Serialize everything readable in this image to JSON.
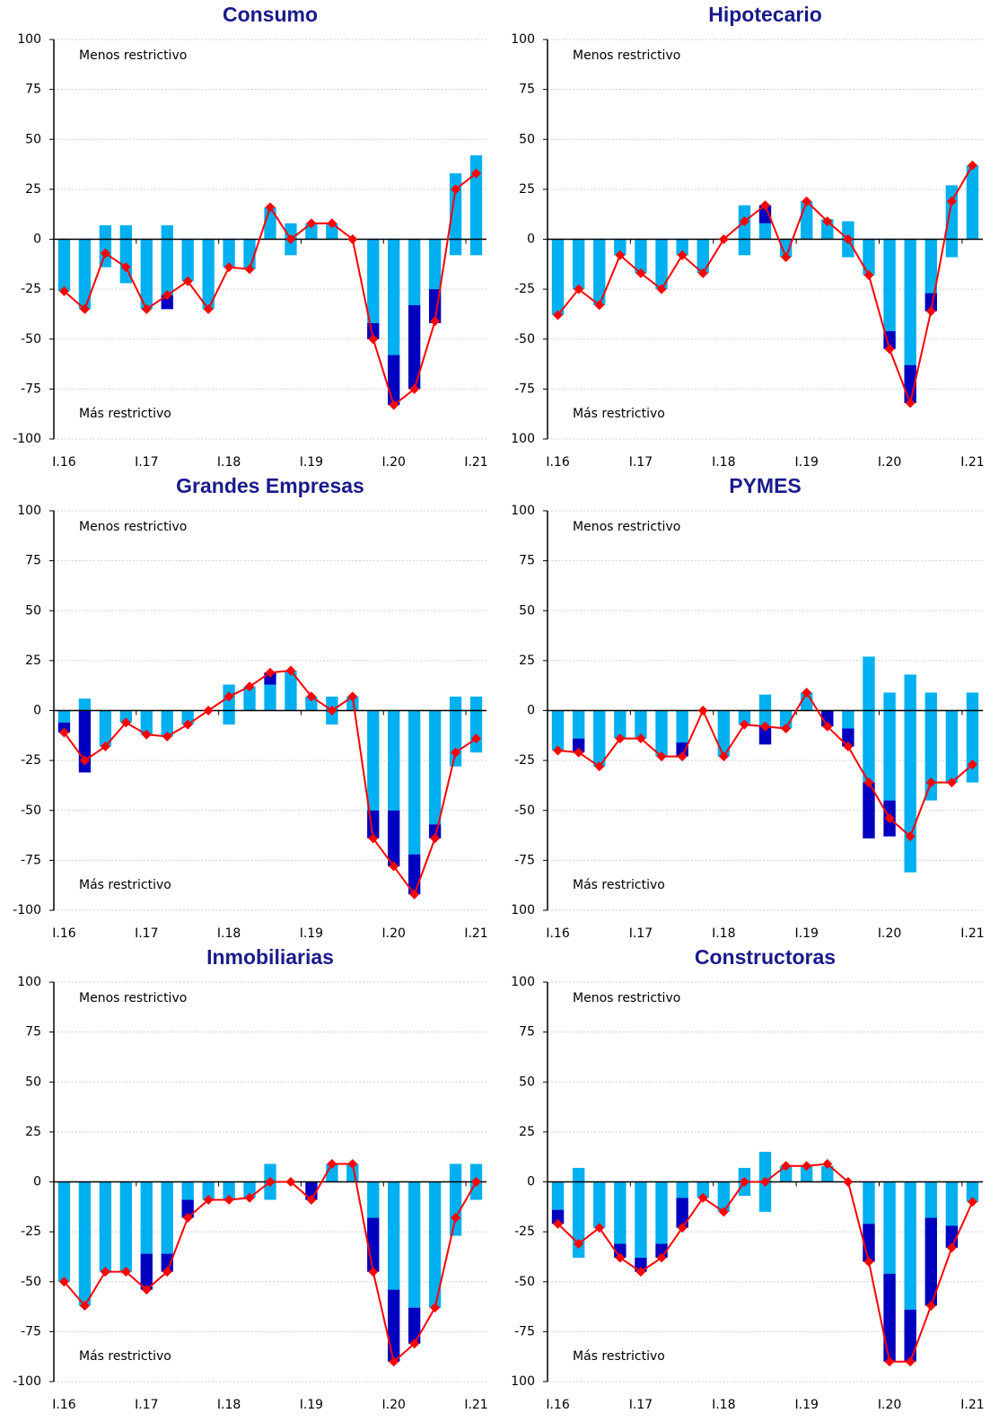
{
  "chart_data": [
    {
      "type": "bar",
      "title": "Consumo",
      "grid": true,
      "ylim": [
        -100,
        100
      ],
      "yticks": [
        100,
        75,
        50,
        25,
        0,
        -25,
        -50,
        -75,
        -100
      ],
      "annotations": [
        "Menos restrictivo",
        "Más restrictivo"
      ],
      "categories": [
        "I.16",
        null,
        null,
        null,
        "I.17",
        null,
        null,
        null,
        "I.18",
        null,
        null,
        null,
        "I.19",
        null,
        null,
        null,
        "I.20",
        null,
        null,
        null,
        "I.21"
      ],
      "series": [
        {
          "type": "bar",
          "color": "#00b0f0",
          "values": [
            0,
            0,
            7,
            7,
            0,
            7,
            0,
            0,
            0,
            0,
            16,
            8,
            8,
            8,
            0,
            0,
            0,
            0,
            0,
            33,
            42
          ]
        },
        {
          "type": "bar",
          "color": "#00b0f0",
          "values": [
            -26,
            -35,
            -14,
            -22,
            -35,
            -28,
            -21,
            -35,
            -14,
            -15,
            0,
            -8,
            0,
            0,
            0,
            -42,
            -58,
            -33,
            -25,
            -8,
            -8
          ]
        },
        {
          "type": "bar",
          "color": "#0000c0",
          "values": [
            0,
            0,
            0,
            0,
            0,
            -7,
            0,
            0,
            0,
            0,
            0,
            0,
            0,
            0,
            0,
            -8,
            -25,
            -42,
            -17,
            0,
            0
          ]
        },
        {
          "type": "line",
          "color": "#ff0000",
          "values": [
            -26,
            -35,
            -7,
            -14,
            -35,
            -28,
            -21,
            -35,
            -14,
            -15,
            16,
            0,
            8,
            8,
            0,
            -50,
            -83,
            -75,
            -41,
            25,
            33
          ]
        }
      ]
    },
    {
      "type": "bar",
      "title": "Hipotecario",
      "grid": true,
      "ylim": [
        -100,
        100
      ],
      "yticks": [
        100,
        75,
        50,
        25,
        0,
        -25,
        -50,
        -75,
        {
          "value": -100,
          "label": "100"
        }
      ],
      "annotations": [
        "Menos restrictivo",
        "Más restrictivo"
      ],
      "categories": [
        "I.16",
        null,
        null,
        null,
        "I.17",
        null,
        null,
        null,
        "I.18",
        null,
        null,
        null,
        "I.19",
        null,
        null,
        null,
        "I.20",
        null,
        null,
        null,
        "I.21"
      ],
      "series": [
        {
          "type": "bar",
          "color": "#00b0f0",
          "values": [
            0,
            0,
            0,
            0,
            0,
            0,
            0,
            0,
            0,
            17,
            8,
            0,
            19,
            10,
            9,
            0,
            0,
            0,
            0,
            27,
            37
          ]
        },
        {
          "type": "bar",
          "color": "#00b0f0",
          "values": [
            -38,
            -25,
            -33,
            -8,
            -17,
            -25,
            -8,
            -17,
            0,
            -8,
            0,
            -9,
            0,
            0,
            -9,
            -18,
            -46,
            -63,
            -27,
            -9,
            0
          ]
        },
        {
          "type": "bar",
          "color": "#0000c0",
          "values": [
            0,
            0,
            0,
            0,
            0,
            0,
            0,
            0,
            0,
            0,
            9,
            0,
            0,
            0,
            0,
            0,
            -9,
            -19,
            -9,
            0,
            0
          ]
        },
        {
          "type": "line",
          "color": "#ff0000",
          "values": [
            -38,
            -25,
            -33,
            -8,
            -17,
            -25,
            -8,
            -17,
            0,
            9,
            17,
            -9,
            19,
            9,
            0,
            -18,
            -55,
            -82,
            -36,
            19,
            37
          ]
        }
      ]
    },
    {
      "type": "bar",
      "title": "Grandes Empresas",
      "grid": true,
      "ylim": [
        -100,
        100
      ],
      "yticks": [
        100,
        75,
        50,
        25,
        0,
        -25,
        -50,
        -75,
        -100
      ],
      "annotations": [
        "Menos restrictivo",
        "Más restrictivo"
      ],
      "categories": [
        "I.16",
        null,
        null,
        null,
        "I.17",
        null,
        null,
        null,
        "I.18",
        null,
        null,
        null,
        "I.19",
        null,
        null,
        null,
        "I.20",
        null,
        null,
        null,
        "I.21"
      ],
      "series": [
        {
          "type": "bar",
          "color": "#00b0f0",
          "values": [
            0,
            6,
            0,
            0,
            0,
            0,
            0,
            0,
            13,
            12,
            13,
            20,
            7,
            7,
            7,
            0,
            0,
            0,
            0,
            7,
            7
          ]
        },
        {
          "type": "bar",
          "color": "#00b0f0",
          "values": [
            -6,
            0,
            -18,
            -6,
            -12,
            -13,
            -7,
            0,
            -7,
            0,
            0,
            0,
            0,
            -7,
            0,
            -50,
            -50,
            -72,
            -57,
            -28,
            -21
          ]
        },
        {
          "type": "bar",
          "color": "#0000c0",
          "values": [
            -5,
            -31,
            0,
            0,
            0,
            0,
            0,
            0,
            0,
            0,
            6,
            0,
            0,
            0,
            0,
            -14,
            -28,
            -20,
            -7,
            0,
            0
          ]
        },
        {
          "type": "line",
          "color": "#ff0000",
          "values": [
            -11,
            -25,
            -18,
            -6,
            -12,
            -13,
            -7,
            0,
            7,
            12,
            19,
            20,
            7,
            0,
            7,
            -64,
            -78,
            -92,
            -64,
            -21,
            -14
          ]
        }
      ]
    },
    {
      "type": "bar",
      "title": "PYMES",
      "grid": true,
      "ylim": [
        -100,
        100
      ],
      "yticks": [
        100,
        75,
        50,
        25,
        0,
        -25,
        -50,
        -75,
        {
          "value": -100,
          "label": "100"
        }
      ],
      "annotations": [
        "Menos restrictivo",
        "Más restrictivo"
      ],
      "categories": [
        "I.16",
        null,
        null,
        null,
        "I.17",
        null,
        null,
        null,
        "I.18",
        null,
        null,
        null,
        "I.19",
        null,
        null,
        null,
        "I.20",
        null,
        null,
        null,
        "I.21"
      ],
      "series": [
        {
          "type": "bar",
          "color": "#00b0f0",
          "values": [
            0,
            0,
            0,
            0,
            0,
            0,
            0,
            0,
            0,
            0,
            8,
            0,
            9,
            0,
            0,
            27,
            9,
            18,
            9,
            0,
            9
          ]
        },
        {
          "type": "bar",
          "color": "#00b0f0",
          "values": [
            -20,
            -14,
            -28,
            -14,
            -14,
            -23,
            -16,
            0,
            -23,
            -7,
            -8,
            -9,
            0,
            0,
            -9,
            -36,
            -45,
            -81,
            -45,
            -36,
            -36
          ]
        },
        {
          "type": "bar",
          "color": "#0000c0",
          "values": [
            0,
            -7,
            0,
            0,
            0,
            0,
            -7,
            0,
            0,
            0,
            -9,
            0,
            0,
            -8,
            -9,
            -28,
            -18,
            0,
            0,
            0,
            0
          ]
        },
        {
          "type": "line",
          "color": "#ff0000",
          "values": [
            -20,
            -21,
            -28,
            -14,
            -14,
            -23,
            -23,
            0,
            -23,
            -7,
            -8,
            -9,
            9,
            -8,
            -18,
            -36,
            -54,
            -63,
            -36,
            -36,
            -27
          ]
        }
      ]
    },
    {
      "type": "bar",
      "title": "Inmobiliarias",
      "grid": true,
      "ylim": [
        -100,
        100
      ],
      "yticks": [
        100,
        75,
        50,
        25,
        0,
        -25,
        -50,
        -75,
        -100
      ],
      "annotations": [
        "Menos restrictivo",
        "Más restrictivo"
      ],
      "categories": [
        "I.16",
        null,
        null,
        null,
        "I.17",
        null,
        null,
        null,
        "I.18",
        null,
        null,
        null,
        "I.19",
        null,
        null,
        null,
        "I.20",
        null,
        null,
        null,
        "I.21"
      ],
      "series": [
        {
          "type": "bar",
          "color": "#00b0f0",
          "values": [
            0,
            0,
            0,
            0,
            0,
            0,
            0,
            0,
            0,
            0,
            9,
            0,
            0,
            9,
            9,
            0,
            0,
            0,
            0,
            9,
            9
          ]
        },
        {
          "type": "bar",
          "color": "#00b0f0",
          "values": [
            -50,
            -62,
            -45,
            -45,
            -36,
            -36,
            -9,
            -9,
            -9,
            -8,
            -9,
            0,
            0,
            0,
            0,
            -18,
            -54,
            -63,
            -63,
            -27,
            -9
          ]
        },
        {
          "type": "bar",
          "color": "#0000c0",
          "values": [
            0,
            0,
            0,
            0,
            -18,
            -9,
            -9,
            0,
            0,
            0,
            0,
            0,
            -9,
            0,
            0,
            -27,
            -36,
            -18,
            0,
            0,
            0
          ]
        },
        {
          "type": "line",
          "color": "#ff0000",
          "values": [
            -50,
            -62,
            -45,
            -45,
            -54,
            -45,
            -18,
            -9,
            -9,
            -8,
            0,
            0,
            -9,
            9,
            9,
            -45,
            -90,
            -81,
            -63,
            -18,
            0
          ]
        }
      ]
    },
    {
      "type": "bar",
      "title": "Constructoras",
      "grid": true,
      "ylim": [
        -100,
        100
      ],
      "yticks": [
        100,
        75,
        50,
        25,
        0,
        -25,
        -50,
        -75,
        {
          "value": -100,
          "label": "100"
        }
      ],
      "annotations": [
        "Menos restrictivo",
        "Más restrictivo"
      ],
      "categories": [
        "I.16",
        null,
        null,
        null,
        "I.17",
        null,
        null,
        null,
        "I.18",
        null,
        null,
        null,
        "I.19",
        null,
        null,
        null,
        "I.20",
        null,
        null,
        null,
        "I.21"
      ],
      "series": [
        {
          "type": "bar",
          "color": "#00b0f0",
          "values": [
            0,
            7,
            0,
            0,
            0,
            0,
            0,
            0,
            0,
            7,
            15,
            8,
            8,
            8,
            0,
            0,
            0,
            0,
            0,
            0,
            0
          ]
        },
        {
          "type": "bar",
          "color": "#00b0f0",
          "values": [
            -14,
            -38,
            -23,
            -31,
            -38,
            -31,
            -8,
            -8,
            -15,
            -7,
            -15,
            0,
            0,
            0,
            0,
            -21,
            -46,
            -64,
            -18,
            -22,
            -10
          ]
        },
        {
          "type": "bar",
          "color": "#0000c0",
          "values": [
            -7,
            0,
            0,
            -7,
            -7,
            -7,
            -15,
            0,
            0,
            0,
            0,
            0,
            0,
            0,
            0,
            -19,
            -44,
            -26,
            -44,
            -11,
            0
          ]
        },
        {
          "type": "line",
          "color": "#ff0000",
          "values": [
            -21,
            -31,
            -23,
            -38,
            -45,
            -38,
            -23,
            -8,
            -15,
            0,
            0,
            8,
            8,
            9,
            0,
            -40,
            -90,
            -90,
            -62,
            -33,
            -10
          ]
        }
      ]
    }
  ]
}
